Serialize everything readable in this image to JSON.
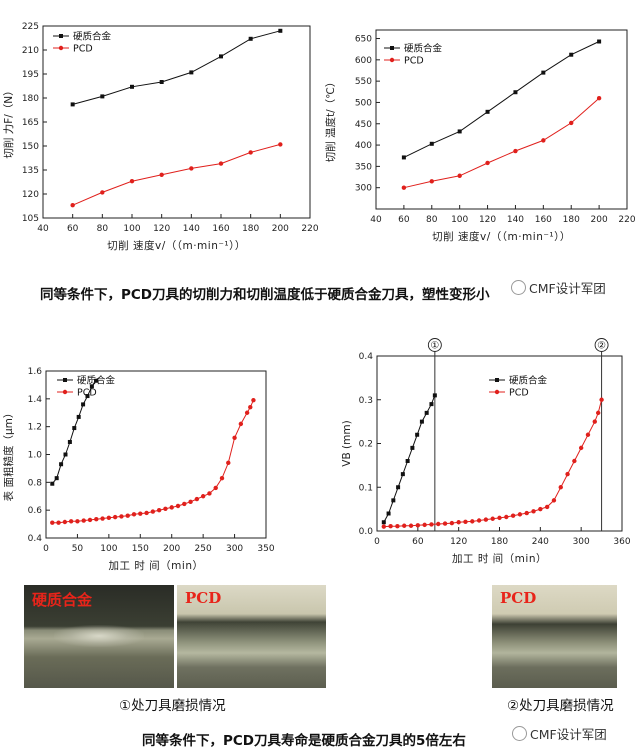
{
  "colors": {
    "black_series": "#111111",
    "red_series": "#e0201c",
    "photo_label": "#e8241a"
  },
  "chart_data": [
    {
      "type": "line",
      "ylabel": "切削 力F/（N）",
      "xlabel": "切削 速度v/（（m·min⁻¹））",
      "xlim": [
        40,
        220
      ],
      "ylim": [
        105,
        225
      ],
      "xticks": [
        40,
        60,
        80,
        100,
        120,
        140,
        160,
        180,
        200,
        220
      ],
      "yticks": [
        105,
        120,
        135,
        150,
        165,
        180,
        195,
        210,
        225
      ],
      "x": [
        60,
        80,
        100,
        120,
        140,
        160,
        180,
        200
      ],
      "series": [
        {
          "name": "硬质合金",
          "marker": "square",
          "values": [
            176,
            181,
            187,
            190,
            196,
            206,
            217,
            222
          ]
        },
        {
          "name": "PCD",
          "marker": "circle",
          "values": [
            113,
            121,
            128,
            132,
            136,
            139,
            146,
            151
          ]
        }
      ],
      "legend": "top-left"
    },
    {
      "type": "line",
      "ylabel": "切削 温度t/（℃）",
      "xlabel": "切削 速度v/（（m·min⁻¹））",
      "xlim": [
        40,
        220
      ],
      "ylim": [
        250,
        670
      ],
      "xticks": [
        40,
        60,
        80,
        100,
        120,
        140,
        160,
        180,
        200,
        220
      ],
      "yticks": [
        300,
        350,
        400,
        450,
        500,
        550,
        600,
        650
      ],
      "x": [
        60,
        80,
        100,
        120,
        140,
        160,
        180,
        200
      ],
      "series": [
        {
          "name": "硬质合金",
          "marker": "square",
          "values": [
            371,
            403,
            432,
            478,
            524,
            570,
            612,
            643
          ]
        },
        {
          "name": "PCD",
          "marker": "circle",
          "values": [
            300,
            315,
            328,
            358,
            386,
            411,
            452,
            510
          ]
        }
      ],
      "legend": "top-left"
    },
    {
      "type": "line",
      "ylabel": "表 面粗糙度（μm）",
      "xlabel": "加工 时 间（min）",
      "xlim": [
        0,
        350
      ],
      "ylim": [
        0.4,
        1.6
      ],
      "xticks": [
        0,
        50,
        100,
        150,
        200,
        250,
        300,
        350
      ],
      "yticks": [
        0.4,
        0.6,
        0.8,
        1.0,
        1.2,
        1.4,
        1.6
      ],
      "series": [
        {
          "name": "硬质合金",
          "marker": "square",
          "points": [
            [
              10,
              0.79
            ],
            [
              17,
              0.83
            ],
            [
              24,
              0.93
            ],
            [
              31,
              1.0
            ],
            [
              38,
              1.09
            ],
            [
              45,
              1.19
            ],
            [
              52,
              1.27
            ],
            [
              59,
              1.36
            ],
            [
              66,
              1.42
            ],
            [
              73,
              1.49
            ],
            [
              80,
              1.53
            ]
          ]
        },
        {
          "name": "PCD",
          "marker": "circle",
          "points": [
            [
              10,
              0.51
            ],
            [
              20,
              0.51
            ],
            [
              30,
              0.515
            ],
            [
              40,
              0.52
            ],
            [
              50,
              0.52
            ],
            [
              60,
              0.525
            ],
            [
              70,
              0.53
            ],
            [
              80,
              0.535
            ],
            [
              90,
              0.54
            ],
            [
              100,
              0.545
            ],
            [
              110,
              0.55
            ],
            [
              120,
              0.555
            ],
            [
              130,
              0.56
            ],
            [
              140,
              0.57
            ],
            [
              150,
              0.575
            ],
            [
              160,
              0.58
            ],
            [
              170,
              0.59
            ],
            [
              180,
              0.6
            ],
            [
              190,
              0.61
            ],
            [
              200,
              0.62
            ],
            [
              210,
              0.63
            ],
            [
              220,
              0.645
            ],
            [
              230,
              0.66
            ],
            [
              240,
              0.68
            ],
            [
              250,
              0.7
            ],
            [
              260,
              0.72
            ],
            [
              270,
              0.76
            ],
            [
              280,
              0.83
            ],
            [
              290,
              0.94
            ],
            [
              300,
              1.12
            ],
            [
              310,
              1.22
            ],
            [
              320,
              1.3
            ],
            [
              325,
              1.34
            ],
            [
              330,
              1.39
            ]
          ]
        }
      ],
      "legend": "top-left"
    },
    {
      "type": "line",
      "ylabel": "VB (mm)",
      "xlabel": "加工 时 间（min）",
      "xlim": [
        0,
        360
      ],
      "ylim": [
        0,
        0.4
      ],
      "xticks": [
        0,
        60,
        120,
        180,
        240,
        300,
        360
      ],
      "yticks": [
        0.0,
        0.1,
        0.2,
        0.3,
        0.4
      ],
      "series": [
        {
          "name": "硬质合金",
          "marker": "square",
          "points": [
            [
              10,
              0.02
            ],
            [
              17,
              0.04
            ],
            [
              24,
              0.07
            ],
            [
              31,
              0.1
            ],
            [
              38,
              0.13
            ],
            [
              45,
              0.16
            ],
            [
              52,
              0.19
            ],
            [
              59,
              0.22
            ],
            [
              66,
              0.25
            ],
            [
              73,
              0.27
            ],
            [
              80,
              0.29
            ],
            [
              85,
              0.31
            ]
          ]
        },
        {
          "name": "PCD",
          "marker": "circle",
          "points": [
            [
              10,
              0.01
            ],
            [
              20,
              0.011
            ],
            [
              30,
              0.011
            ],
            [
              40,
              0.012
            ],
            [
              50,
              0.012
            ],
            [
              60,
              0.013
            ],
            [
              70,
              0.014
            ],
            [
              80,
              0.015
            ],
            [
              90,
              0.016
            ],
            [
              100,
              0.017
            ],
            [
              110,
              0.018
            ],
            [
              120,
              0.02
            ],
            [
              130,
              0.021
            ],
            [
              140,
              0.022
            ],
            [
              150,
              0.024
            ],
            [
              160,
              0.026
            ],
            [
              170,
              0.028
            ],
            [
              180,
              0.03
            ],
            [
              190,
              0.032
            ],
            [
              200,
              0.035
            ],
            [
              210,
              0.038
            ],
            [
              220,
              0.041
            ],
            [
              230,
              0.045
            ],
            [
              240,
              0.05
            ],
            [
              250,
              0.055
            ],
            [
              260,
              0.07
            ],
            [
              270,
              0.1
            ],
            [
              280,
              0.13
            ],
            [
              290,
              0.16
            ],
            [
              300,
              0.19
            ],
            [
              310,
              0.22
            ],
            [
              320,
              0.25
            ],
            [
              325,
              0.27
            ],
            [
              330,
              0.3
            ]
          ]
        }
      ],
      "vlines": [
        {
          "x": 85,
          "label": "①"
        },
        {
          "x": 330,
          "label": "②"
        }
      ],
      "legend": "top-right"
    }
  ],
  "captions": {
    "top": "同等条件下，PCD刀具的切削力和切削温度低于硬质合金刀具，塑性变形小",
    "bottom": "同等条件下，PCD刀具寿命是硬质合金刀具的5倍左右"
  },
  "watermark": "CMF设计军团",
  "photos": {
    "p1_label": "硬质合金",
    "p2_label": "PCD",
    "p3_label": "PCD",
    "cap1": "①处刀具磨损情况",
    "cap2": "②处刀具磨损情况"
  }
}
